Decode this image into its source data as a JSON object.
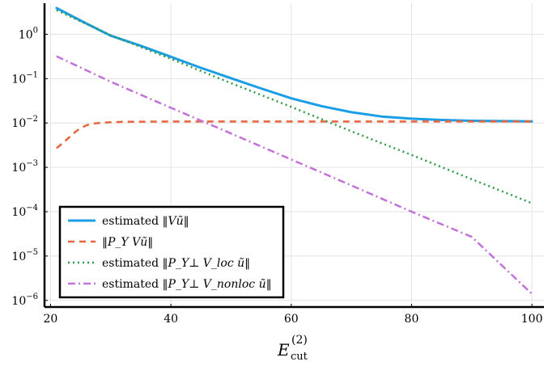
{
  "chart_data": {
    "type": "line",
    "title": "",
    "xlabel": "E",
    "xlabel_sub": "cut",
    "xlabel_sup": "(2)",
    "ylabel": "",
    "xlim": [
      19,
      102
    ],
    "ylim_log10": [
      -6.15,
      0.7
    ],
    "y_scale": "log",
    "grid": true,
    "legend_position": "bottom-left",
    "x_ticks": [
      20,
      40,
      60,
      80,
      100
    ],
    "y_ticks": [
      {
        "exp": 0,
        "label": "10",
        "sup": "0"
      },
      {
        "exp": -1,
        "label": "10",
        "sup": "−1"
      },
      {
        "exp": -2,
        "label": "10",
        "sup": "−2"
      },
      {
        "exp": -3,
        "label": "10",
        "sup": "−3"
      },
      {
        "exp": -4,
        "label": "10",
        "sup": "−4"
      },
      {
        "exp": -5,
        "label": "10",
        "sup": "−5"
      },
      {
        "exp": -6,
        "label": "10",
        "sup": "−6"
      }
    ],
    "series": [
      {
        "name": "estimated ‖Vũ‖",
        "legend_pre": "estimated ‖",
        "legend_math": "Vũ",
        "legend_post": "‖",
        "color": "#1b9ee6",
        "dash": "solid",
        "width": 3,
        "x": [
          21,
          25,
          30,
          35,
          40,
          45,
          50,
          55,
          60,
          65,
          70,
          75,
          80,
          85,
          90,
          95,
          100
        ],
        "y": [
          3.9,
          2.03,
          0.93,
          0.55,
          0.31,
          0.175,
          0.102,
          0.06,
          0.036,
          0.024,
          0.0175,
          0.014,
          0.0125,
          0.0117,
          0.0112,
          0.011,
          0.0109
        ]
      },
      {
        "name": "‖P_Y Vũ‖",
        "legend_pre": "‖",
        "legend_math": "P_Y Vũ",
        "legend_post": "‖",
        "color": "#e8643c",
        "dash": "8,6",
        "width": 2.5,
        "x": [
          21,
          22,
          23,
          24,
          25,
          26,
          27,
          28,
          30,
          32,
          35,
          40,
          50,
          60,
          70,
          80,
          90,
          100
        ],
        "y": [
          0.0027,
          0.0035,
          0.0046,
          0.0061,
          0.0077,
          0.0089,
          0.0096,
          0.01,
          0.0104,
          0.0106,
          0.0107,
          0.0108,
          0.0108,
          0.0108,
          0.0108,
          0.0108,
          0.0108,
          0.0108
        ]
      },
      {
        "name": "estimated ‖P_Y⊥ V_loc ũ‖",
        "legend_pre": "estimated ‖",
        "legend_math": "P_Y⊥ V_loc ũ",
        "legend_post": "‖",
        "color": "#2e9a48",
        "dash": "2,4",
        "width": 2.5,
        "x": [
          21,
          30,
          40,
          50,
          60,
          70,
          80,
          90,
          100
        ],
        "y": [
          3.5,
          0.95,
          0.28,
          0.079,
          0.023,
          0.0065,
          0.0019,
          0.00054,
          0.000155
        ]
      },
      {
        "name": "estimated ‖P_Y⊥ V_nonloc ũ‖",
        "legend_pre": "estimated ‖",
        "legend_math": "P_Y⊥ V_nonloc ũ",
        "legend_post": "‖",
        "color": "#c272d8",
        "dash": "9,4,2,4",
        "width": 2.5,
        "x": [
          21,
          30,
          40,
          50,
          60,
          70,
          80,
          90,
          100
        ],
        "y": [
          0.32,
          0.085,
          0.022,
          0.0058,
          0.0015,
          0.00039,
          0.0001,
          2.7e-05,
          1.4e-06
        ]
      }
    ]
  }
}
